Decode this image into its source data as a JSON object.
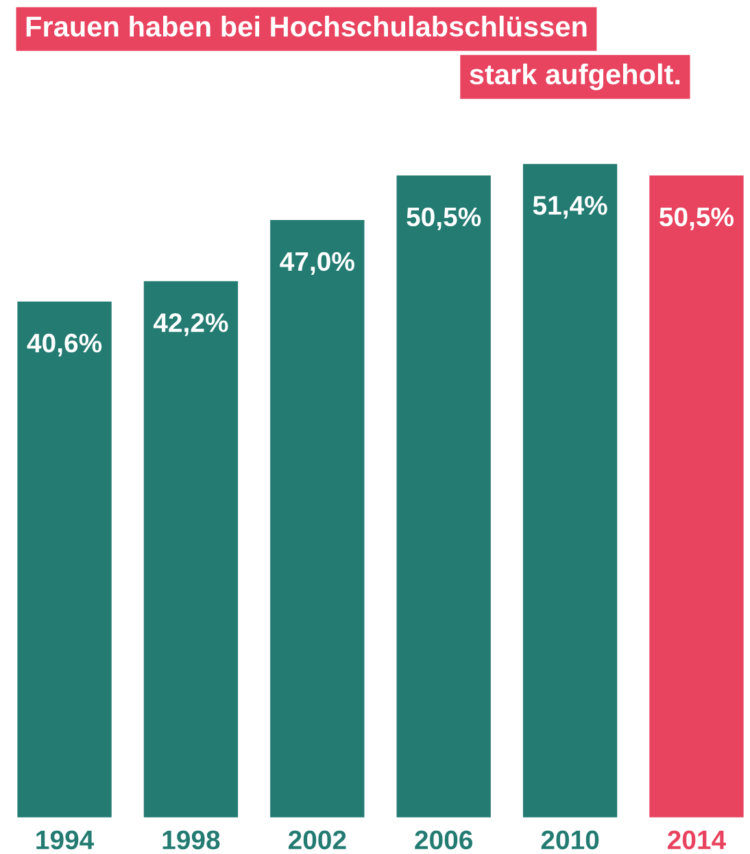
{
  "chart_data": {
    "type": "bar",
    "title": "Frauen haben bei Hochschulabschlüssen\nstark aufgeholt.",
    "categories": [
      "1994",
      "1998",
      "2002",
      "2006",
      "2010",
      "2014"
    ],
    "values": [
      40.6,
      42.2,
      47.0,
      50.5,
      51.4,
      50.5
    ],
    "value_labels": [
      "40,6%",
      "42,2%",
      "47,0%",
      "50,5%",
      "51,4%",
      "50,5%"
    ],
    "colors": [
      "#237b72",
      "#237b72",
      "#237b72",
      "#237b72",
      "#237b72",
      "#e8435f"
    ],
    "grid": false,
    "legend": false
  }
}
